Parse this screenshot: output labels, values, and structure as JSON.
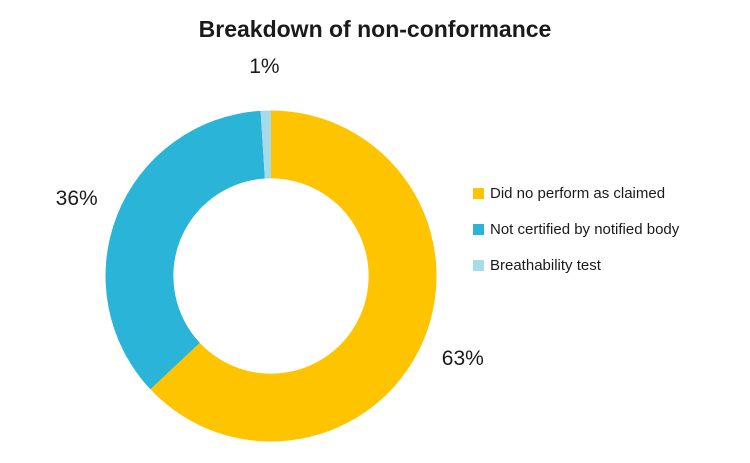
{
  "page": {
    "background": "#FFFFFF",
    "text_color": "#1A1A1A"
  },
  "chart_data": {
    "type": "pie",
    "subtype": "donut",
    "title": "Breakdown of non-conformance",
    "unit": "%",
    "total": 100,
    "segments": [
      {
        "label": "Did no perform as claimed",
        "value": 63,
        "display": "63%",
        "color": "#FFC400"
      },
      {
        "label": "Not certified by notified body",
        "value": 36,
        "display": "36%",
        "color": "#29B4D8"
      },
      {
        "label": "Breathability test",
        "value": 1,
        "display": "1%",
        "color": "#A6DCEA"
      }
    ],
    "start_angle_deg": 0,
    "direction": "clockwise",
    "hole_radius_ratio": 0.59,
    "legend_position": "right",
    "data_label_style": "outside-end-percent",
    "grid": "off"
  }
}
